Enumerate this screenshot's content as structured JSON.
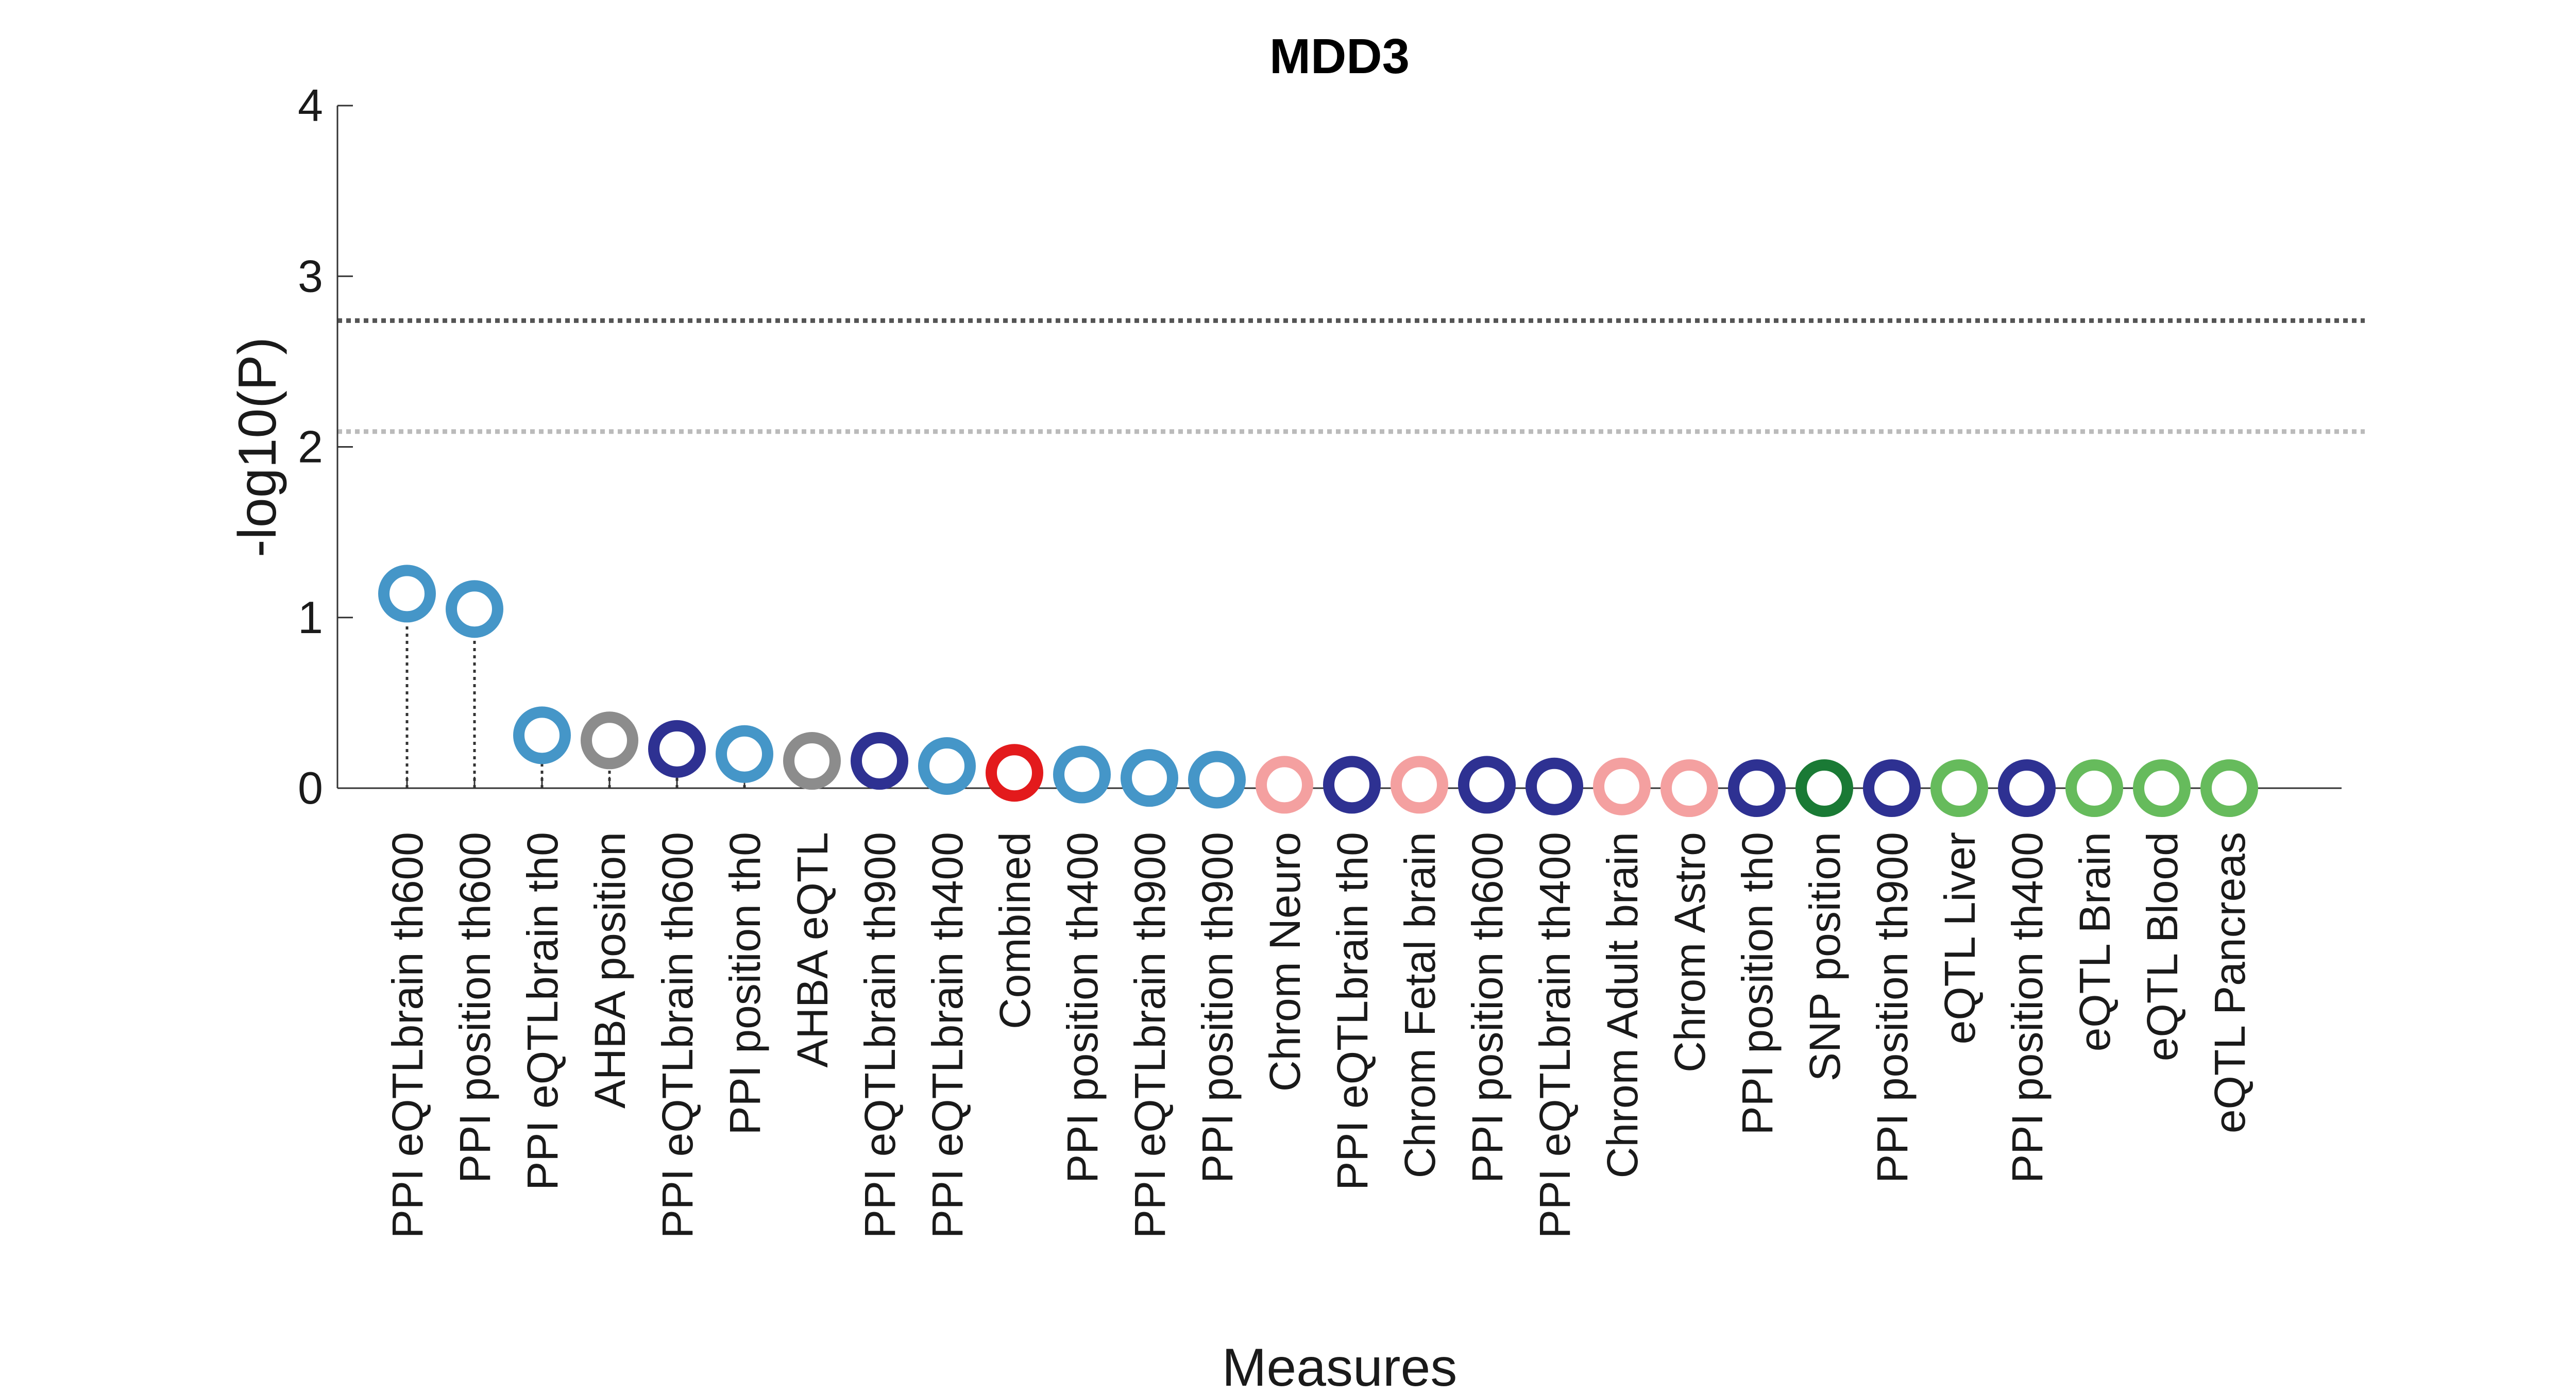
{
  "chart_data": {
    "type": "scatter",
    "title": "MDD3",
    "xlabel": "Measures",
    "ylabel": "-log10(P)",
    "ylim": [
      0,
      4
    ],
    "yticks": [
      0,
      1,
      2,
      3,
      4
    ],
    "grid": false,
    "reference_lines": [
      {
        "y": 2.74,
        "style": "dotted",
        "color": "#555555"
      },
      {
        "y": 2.09,
        "style": "dotted",
        "color": "#bbbbbb"
      }
    ],
    "points": [
      {
        "label": "PPI eQTLbrain th600",
        "value": 1.14,
        "color": "#4596c8"
      },
      {
        "label": "PPI position th600",
        "value": 1.05,
        "color": "#4596c8"
      },
      {
        "label": "PPI eQTLbrain th0",
        "value": 0.31,
        "color": "#4596c8"
      },
      {
        "label": "AHBA position",
        "value": 0.28,
        "color": "#8c8c8c"
      },
      {
        "label": "PPI eQTLbrain th600",
        "value": 0.23,
        "color": "#2e3192"
      },
      {
        "label": "PPI position th0",
        "value": 0.2,
        "color": "#4596c8"
      },
      {
        "label": "AHBA eQTL",
        "value": 0.16,
        "color": "#8c8c8c"
      },
      {
        "label": "PPI eQTLbrain th900",
        "value": 0.16,
        "color": "#2e3192"
      },
      {
        "label": "PPI eQTLbrain th400",
        "value": 0.13,
        "color": "#4596c8"
      },
      {
        "label": "Combined",
        "value": 0.09,
        "color": "#e31a1c"
      },
      {
        "label": "PPI position th400",
        "value": 0.08,
        "color": "#4596c8"
      },
      {
        "label": "PPI eQTLbrain th900",
        "value": 0.06,
        "color": "#4596c8"
      },
      {
        "label": "PPI position th900",
        "value": 0.05,
        "color": "#4596c8"
      },
      {
        "label": "Chrom Neuro",
        "value": 0.02,
        "color": "#f4a0a0"
      },
      {
        "label": "PPI eQTLbrain th0",
        "value": 0.02,
        "color": "#2e3192"
      },
      {
        "label": "Chrom Fetal brain",
        "value": 0.02,
        "color": "#f4a0a0"
      },
      {
        "label": "PPI position th600",
        "value": 0.02,
        "color": "#2e3192"
      },
      {
        "label": "PPI eQTLbrain th400",
        "value": 0.01,
        "color": "#2e3192"
      },
      {
        "label": "Chrom Adult brain",
        "value": 0.01,
        "color": "#f4a0a0"
      },
      {
        "label": "Chrom Astro",
        "value": 0.0,
        "color": "#f4a0a0"
      },
      {
        "label": "PPI position th0",
        "value": 0.0,
        "color": "#2e3192"
      },
      {
        "label": "SNP position",
        "value": 0.0,
        "color": "#1a7a35"
      },
      {
        "label": "PPI position th900",
        "value": 0.0,
        "color": "#2e3192"
      },
      {
        "label": "eQTL Liver",
        "value": 0.0,
        "color": "#66bb5c"
      },
      {
        "label": "PPI position th400",
        "value": 0.0,
        "color": "#2e3192"
      },
      {
        "label": "eQTL Brain",
        "value": 0.0,
        "color": "#66bb5c"
      },
      {
        "label": "eQTL Blood",
        "value": 0.0,
        "color": "#66bb5c"
      },
      {
        "label": "eQTL Pancreas",
        "value": 0.0,
        "color": "#66bb5c"
      }
    ]
  }
}
